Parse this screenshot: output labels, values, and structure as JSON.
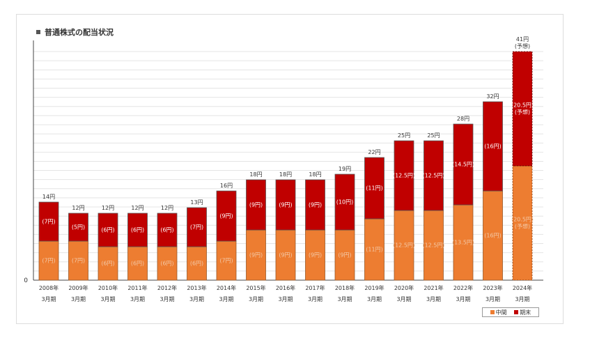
{
  "chart_data": {
    "type": "bar",
    "stacked": true,
    "title": "普通株式の配当状況",
    "ylim": [
      0,
      41
    ],
    "y_zero_label": "0",
    "grid": true,
    "legend_position": "bottom-right",
    "categories": [
      [
        "2008年",
        "3月期"
      ],
      [
        "2009年",
        "3月期"
      ],
      [
        "2010年",
        "3月期"
      ],
      [
        "2011年",
        "3月期"
      ],
      [
        "2012年",
        "3月期"
      ],
      [
        "2013年",
        "3月期"
      ],
      [
        "2014年",
        "3月期"
      ],
      [
        "2015年",
        "3月期"
      ],
      [
        "2016年",
        "3月期"
      ],
      [
        "2017年",
        "3月期"
      ],
      [
        "2018年",
        "3月期"
      ],
      [
        "2019年",
        "3月期"
      ],
      [
        "2020年",
        "3月期"
      ],
      [
        "2021年",
        "3月期"
      ],
      [
        "2022年",
        "3月期"
      ],
      [
        "2023年",
        "3月期"
      ],
      [
        "2024年",
        "3月期"
      ]
    ],
    "series": [
      {
        "name": "中間",
        "color": "#ED7D31",
        "values": [
          7,
          7,
          6,
          6,
          6,
          6,
          7,
          9,
          9,
          9,
          9,
          11,
          12.5,
          12.5,
          13.5,
          16,
          20.5
        ],
        "labels": [
          [
            "(7円)"
          ],
          [
            "(7円)"
          ],
          [
            "(6円)"
          ],
          [
            "(6円)"
          ],
          [
            "(6円)"
          ],
          [
            "(6円)"
          ],
          [
            "(7円)"
          ],
          [
            "(9円)"
          ],
          [
            "(9円)"
          ],
          [
            "(9円)"
          ],
          [
            "(9円)"
          ],
          [
            "(11円)"
          ],
          [
            "(12.5円)"
          ],
          [
            "(12.5円)"
          ],
          [
            "(13.5円)"
          ],
          [
            "(16円)"
          ],
          [
            "(20.5円)",
            "(予想)"
          ]
        ]
      },
      {
        "name": "期末",
        "color": "#C00000",
        "values": [
          7,
          5,
          6,
          6,
          6,
          7,
          9,
          9,
          9,
          9,
          10,
          11,
          12.5,
          12.5,
          14.5,
          16,
          20.5
        ],
        "labels": [
          [
            "(7円)"
          ],
          [
            "(5円)"
          ],
          [
            "(6円)"
          ],
          [
            "(6円)"
          ],
          [
            "(6円)"
          ],
          [
            "(7円)"
          ],
          [
            "(9円)"
          ],
          [
            "(9円)"
          ],
          [
            "(9円)"
          ],
          [
            "(9円)"
          ],
          [
            "(10円)"
          ],
          [
            "(11円)"
          ],
          [
            "(12.5円)"
          ],
          [
            "(12.5円)"
          ],
          [
            "(14.5円)"
          ],
          [
            "(16円)"
          ],
          [
            "(20.5円)",
            "(予想)"
          ]
        ]
      }
    ],
    "totals": [
      [
        "14円"
      ],
      [
        "12円"
      ],
      [
        "12円"
      ],
      [
        "12円"
      ],
      [
        "12円"
      ],
      [
        "13円"
      ],
      [
        "16円"
      ],
      [
        "18円"
      ],
      [
        "18円"
      ],
      [
        "18円"
      ],
      [
        "19円"
      ],
      [
        "22円"
      ],
      [
        "25円"
      ],
      [
        "25円"
      ],
      [
        "28円"
      ],
      [
        "32円"
      ],
      [
        "41円",
        "(予想)"
      ]
    ],
    "forecast_index": 16
  }
}
